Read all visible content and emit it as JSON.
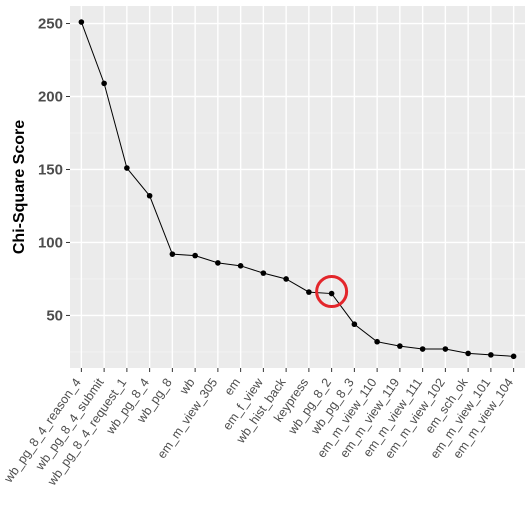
{
  "chart_data": {
    "type": "line",
    "title": "",
    "xlabel": "",
    "ylabel": "Chi-Square Score",
    "categories": [
      "wb_pg_8_4_reason_4",
      "wb_pg_8_4_submit",
      "wb_pg_8_4_request_1",
      "wb_pg_8_4",
      "wb_pg_8",
      "wb",
      "em_m_view_305",
      "em",
      "em_f_view",
      "wb_hist_back",
      "keypress",
      "wb_pg_8_2",
      "wb_pg_8_3",
      "em_m_view_110",
      "em_m_view_119",
      "em_m_view_111",
      "em_m_view_102",
      "em_sch_ok",
      "em_m_view_101",
      "em_m_view_104"
    ],
    "values": [
      251,
      209,
      151,
      132,
      92,
      91,
      86,
      84,
      79,
      75,
      66,
      65,
      44,
      32,
      29,
      27,
      27,
      24,
      23,
      22
    ],
    "yticks": [
      50,
      100,
      150,
      200,
      250
    ],
    "ylim": [
      14,
      262
    ],
    "grid": true,
    "annotation": {
      "type": "circle",
      "category": "wb_pg_8_2",
      "color": "#e3262b"
    },
    "colors": {
      "panel": "#ebebeb",
      "grid_major": "#ffffff",
      "grid_minor": "#f3f3f3",
      "line": "#000000",
      "tick_text": "#4d4d4d"
    }
  }
}
